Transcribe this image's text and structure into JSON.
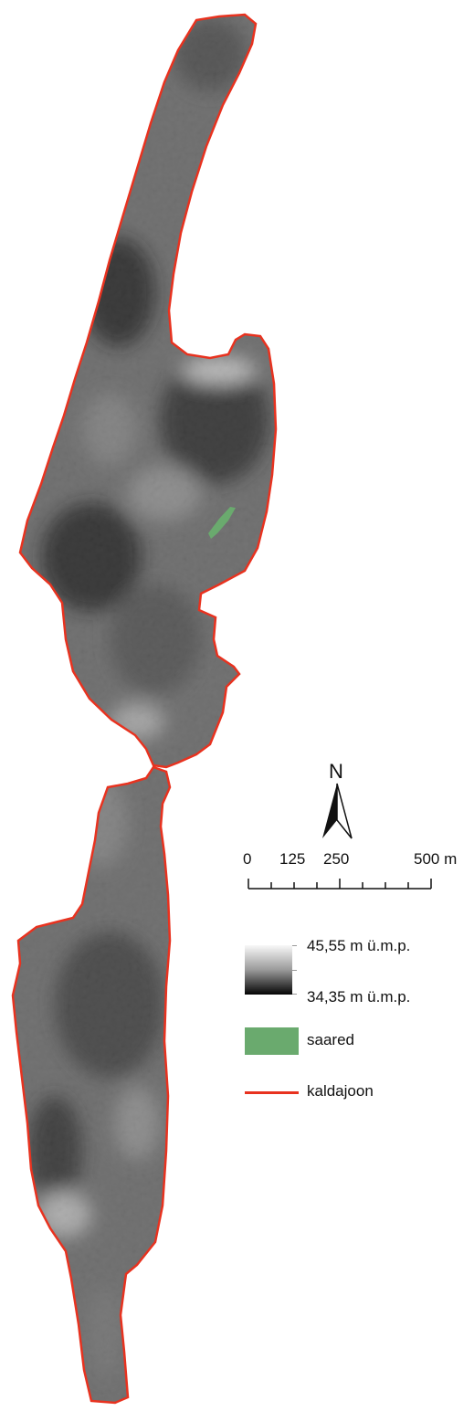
{
  "map": {
    "colors": {
      "shoreline": "#e8321f",
      "island": "#6aaa6e",
      "dem_high": "#f8f8f8",
      "dem_low": "#050505"
    }
  },
  "north_arrow": {
    "letter": "N"
  },
  "scale_bar": {
    "labels": [
      "0",
      "125",
      "250",
      "500 m"
    ]
  },
  "legend": {
    "elevation_max": "45,55 m ü.m.p.",
    "elevation_min": "34,35 m ü.m.p.",
    "islands_label": "saared",
    "shoreline_label": "kaldajoon"
  }
}
